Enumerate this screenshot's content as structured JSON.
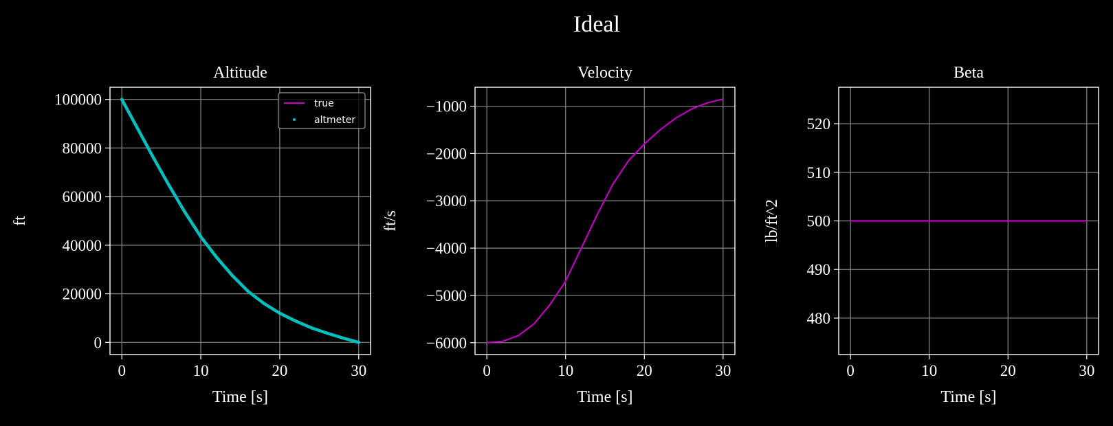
{
  "figure": {
    "title": "Ideal",
    "background": "#000000",
    "foreground": "#ffffff",
    "grid_color": "#8a8a8a"
  },
  "chart_data": [
    {
      "type": "line",
      "title": "Altitude",
      "xlabel": "Time [s]",
      "ylabel": "ft",
      "xlim": [
        -1.5,
        31.5
      ],
      "ylim": [
        -5000,
        105000
      ],
      "xticks": [
        0,
        10,
        20,
        30
      ],
      "yticks": [
        0,
        20000,
        40000,
        60000,
        80000,
        100000
      ],
      "grid": true,
      "legend": {
        "placement": "top-right",
        "entries": [
          "true",
          "altmeter"
        ]
      },
      "series": [
        {
          "name": "true",
          "color": "#bf00bf",
          "style": "line",
          "x": [
            0,
            2,
            4,
            6,
            8,
            10,
            12,
            14,
            16,
            18,
            20,
            22,
            24,
            26,
            28,
            30
          ],
          "y": [
            100000,
            88000,
            76000,
            64500,
            53500,
            43500,
            35000,
            27500,
            21000,
            16000,
            12000,
            8800,
            6000,
            3800,
            1800,
            0
          ]
        },
        {
          "name": "altmeter",
          "color": "#00bfbf",
          "style": "markers",
          "x": [
            0,
            2,
            4,
            6,
            8,
            10,
            12,
            14,
            16,
            18,
            20,
            22,
            24,
            26,
            28,
            30
          ],
          "y": [
            100000,
            88000,
            76000,
            64500,
            53500,
            43500,
            35000,
            27500,
            21000,
            16000,
            12000,
            8800,
            6000,
            3800,
            1800,
            0
          ]
        }
      ]
    },
    {
      "type": "line",
      "title": "Velocity",
      "xlabel": "Time [s]",
      "ylabel": "ft/s",
      "xlim": [
        -1.5,
        31.5
      ],
      "ylim": [
        -6250,
        -600
      ],
      "xticks": [
        0,
        10,
        20,
        30
      ],
      "yticks": [
        -6000,
        -5000,
        -4000,
        -3000,
        -2000,
        -1000
      ],
      "ytick_labels": [
        "−6000",
        "−5000",
        "−4000",
        "−3000",
        "−2000",
        "−1000"
      ],
      "grid": true,
      "series": [
        {
          "color": "#bf00bf",
          "style": "line",
          "x": [
            0,
            2,
            4,
            6,
            8,
            10,
            12,
            14,
            16,
            18,
            20,
            22,
            24,
            26,
            28,
            30
          ],
          "y": [
            -6000,
            -5970,
            -5850,
            -5600,
            -5200,
            -4700,
            -4000,
            -3300,
            -2650,
            -2150,
            -1800,
            -1500,
            -1250,
            -1060,
            -930,
            -850
          ]
        }
      ]
    },
    {
      "type": "line",
      "title": "Beta",
      "xlabel": "Time [s]",
      "ylabel": "lb/ft^2",
      "xlim": [
        -1.5,
        31.5
      ],
      "ylim": [
        472.5,
        527.5
      ],
      "xticks": [
        0,
        10,
        20,
        30
      ],
      "yticks": [
        480,
        490,
        500,
        510,
        520
      ],
      "grid": true,
      "series": [
        {
          "color": "#bf00bf",
          "style": "line",
          "x": [
            0,
            30
          ],
          "y": [
            500,
            500
          ]
        }
      ]
    }
  ]
}
